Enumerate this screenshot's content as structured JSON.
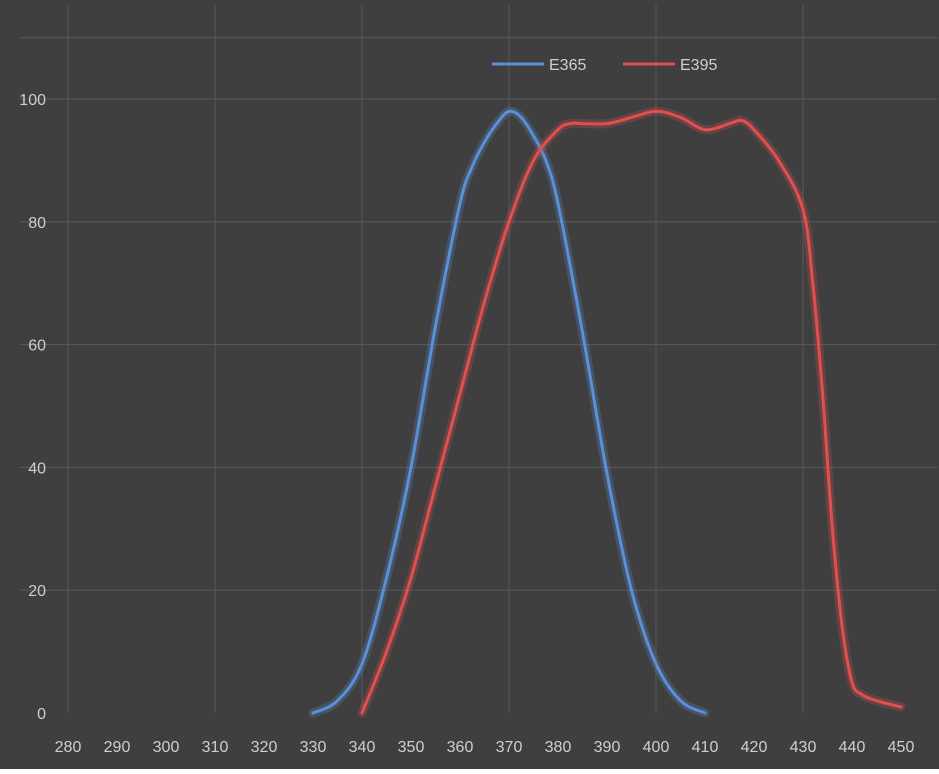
{
  "chart_data": {
    "type": "line",
    "title": "",
    "xlabel": "",
    "ylabel": "",
    "xlim": [
      280,
      450
    ],
    "ylim": [
      0,
      110
    ],
    "x_ticks": [
      280,
      290,
      300,
      310,
      320,
      330,
      340,
      350,
      360,
      370,
      380,
      390,
      400,
      410,
      420,
      430,
      440,
      450
    ],
    "y_ticks": [
      0,
      20,
      40,
      60,
      80,
      100
    ],
    "grid": true,
    "legend_placement": "top-center",
    "background_color": "#3f3f3f",
    "series": [
      {
        "name": "E365",
        "color": "#5b8fd6",
        "x": [
          330,
          335,
          340,
          345,
          350,
          355,
          360,
          362.5,
          365,
          367.5,
          370,
          372.5,
          375,
          377.5,
          380,
          385,
          390,
          395,
          400,
          405,
          410
        ],
        "y": [
          0,
          2,
          8,
          22,
          40,
          63,
          83,
          89,
          93,
          96,
          98,
          97,
          94,
          90,
          83,
          62,
          39,
          20,
          8,
          2,
          0
        ]
      },
      {
        "name": "E395",
        "color": "#e05050",
        "x": [
          340,
          345,
          350,
          355,
          360,
          365,
          370,
          375,
          380,
          382.5,
          385,
          390,
          395,
          400,
          405,
          410,
          415,
          417.5,
          420,
          425,
          430,
          432,
          434,
          436,
          438,
          440,
          442,
          445,
          450
        ],
        "y": [
          0,
          10,
          22,
          37,
          52,
          67,
          80,
          90,
          95,
          96,
          96,
          96,
          97,
          98,
          97,
          95,
          96,
          96.5,
          95,
          90,
          82,
          70,
          52,
          30,
          14,
          5,
          3,
          2,
          1
        ]
      }
    ]
  }
}
